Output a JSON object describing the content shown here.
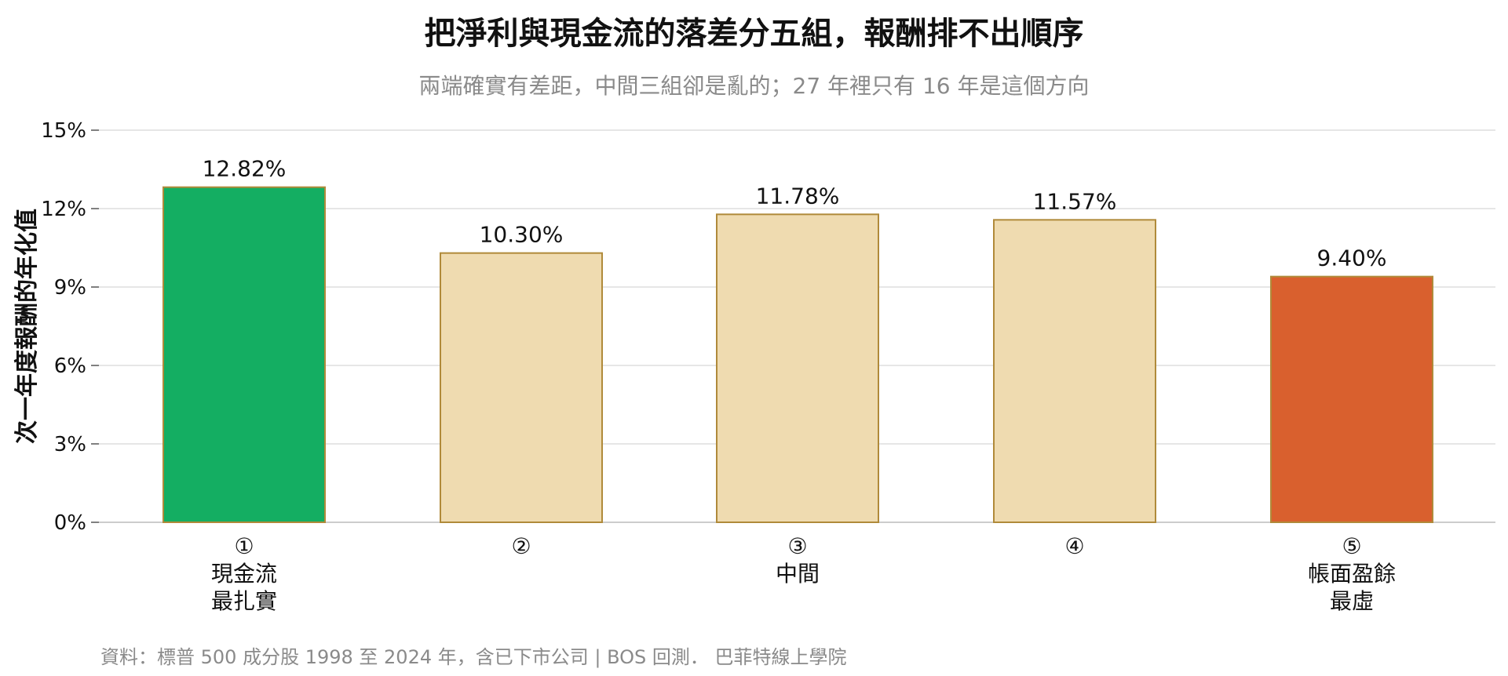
{
  "chart_data": {
    "type": "bar",
    "title": "把淨利與現金流的落差分五組，報酬排不出順序",
    "subtitle": "兩端確實有差距，中間三組卻是亂的；27 年裡只有 16 年是這個方向",
    "ylabel": "次一年度報酬的年化值",
    "xlabel": "",
    "ylim": [
      0,
      15
    ],
    "yticks": [
      0,
      3,
      6,
      9,
      12,
      15
    ],
    "ytick_labels": [
      "0%",
      "3%",
      "6%",
      "9%",
      "12%",
      "15%"
    ],
    "grid": true,
    "categories": [
      [
        "①",
        "現金流",
        "最扎實"
      ],
      [
        "②"
      ],
      [
        "③",
        "中間"
      ],
      [
        "④"
      ],
      [
        "⑤",
        "帳面盈餘",
        "最虛"
      ]
    ],
    "values": [
      12.82,
      10.3,
      11.78,
      11.57,
      9.4
    ],
    "value_labels": [
      "12.82%",
      "10.30%",
      "11.78%",
      "11.57%",
      "9.40%"
    ],
    "bar_colors": [
      "#14ae62",
      "#efdbb0",
      "#efdbb0",
      "#efdbb0",
      "#d9602e"
    ],
    "bar_edge_color": "#b08a3a",
    "source": "資料：標普 500 成分股 1998 至 2024 年，含已下市公司 | BOS 回測．  巴菲特線上學院"
  }
}
